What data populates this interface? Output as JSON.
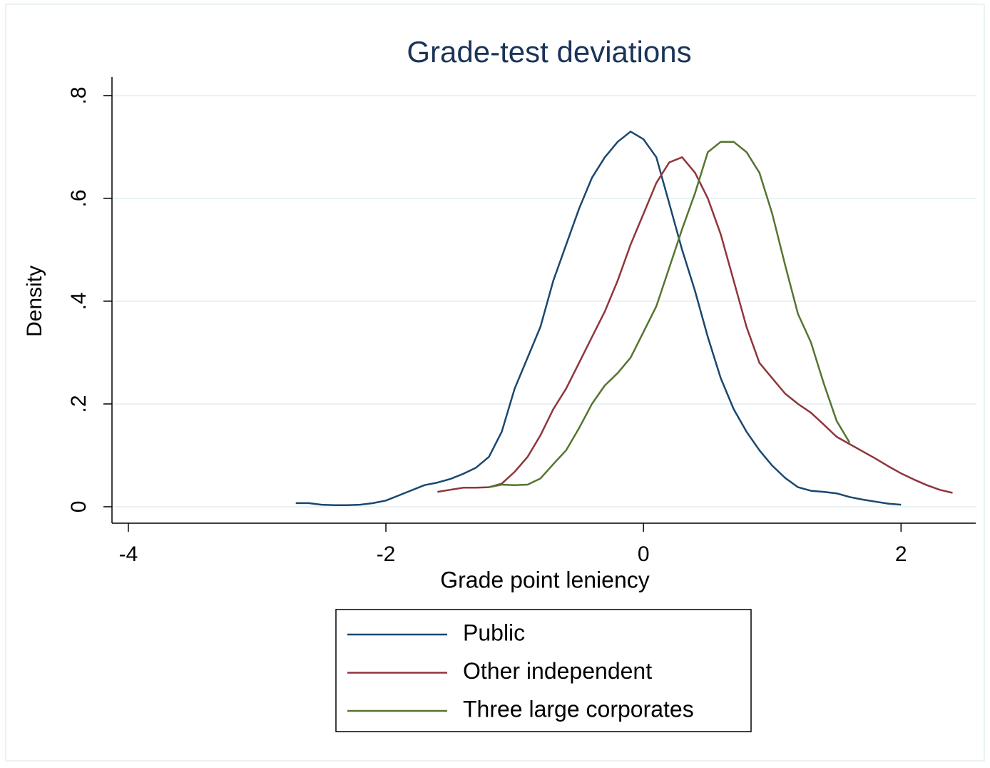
{
  "chart_data": {
    "type": "line",
    "title": "Grade-test deviations",
    "x_label": "Grade point leniency",
    "y_label": "Density",
    "xlim": [
      -4.127,
      2.58
    ],
    "ylim": [
      -0.032,
      0.836
    ],
    "xticks": [
      -4,
      -2,
      0,
      2
    ],
    "yticks": [
      {
        "value": 0,
        "label": "0"
      },
      {
        "value": 0.2,
        "label": ".2"
      },
      {
        "value": 0.4,
        "label": ".4"
      },
      {
        "value": 0.6,
        "label": ".6"
      },
      {
        "value": 0.8,
        "label": ".8"
      }
    ],
    "grid": true,
    "legend": "bottom",
    "x": [
      -2.7,
      -2.6,
      -2.5,
      -2.4,
      -2.3,
      -2.2,
      -2.1,
      -2.0,
      -1.9,
      -1.8,
      -1.7,
      -1.6,
      -1.5,
      -1.4,
      -1.3,
      -1.2,
      -1.1,
      -1.0,
      -0.9,
      -0.8,
      -0.7,
      -0.6,
      -0.5,
      -0.4,
      -0.3,
      -0.2,
      -0.1,
      0,
      0.1,
      0.2,
      0.3,
      0.4,
      0.5,
      0.6,
      0.7,
      0.8,
      0.9,
      1.0,
      1.1,
      1.2,
      1.3,
      1.4,
      1.5,
      1.6,
      1.7,
      1.8,
      1.9,
      2.0,
      2.1,
      2.2,
      2.3,
      2.4
    ],
    "series": [
      {
        "name": "Public",
        "color": "#1a476f",
        "values": [
          0.007,
          0.007,
          0.004,
          0.003,
          0.003,
          0.004,
          0.007,
          0.012,
          0.022,
          0.032,
          0.042,
          0.047,
          0.054,
          0.064,
          0.076,
          0.097,
          0.146,
          0.23,
          0.29,
          0.35,
          0.44,
          0.51,
          0.58,
          0.64,
          0.68,
          0.71,
          0.73,
          0.715,
          0.68,
          0.59,
          0.5,
          0.42,
          0.33,
          0.25,
          0.19,
          0.146,
          0.11,
          0.08,
          0.056,
          0.038,
          0.031,
          0.029,
          0.026,
          0.019,
          0.014,
          0.01,
          0.006,
          0.004,
          null,
          null,
          null,
          null
        ]
      },
      {
        "name": "Other independent",
        "color": "#90353b",
        "values": [
          null,
          null,
          null,
          null,
          null,
          null,
          null,
          null,
          null,
          null,
          null,
          0.029,
          0.033,
          0.037,
          0.037,
          0.038,
          0.045,
          0.068,
          0.097,
          0.139,
          0.19,
          0.23,
          0.28,
          0.33,
          0.38,
          0.44,
          0.51,
          0.57,
          0.63,
          0.67,
          0.68,
          0.65,
          0.6,
          0.53,
          0.44,
          0.35,
          0.28,
          0.25,
          0.22,
          0.2,
          0.183,
          0.16,
          0.136,
          0.122,
          0.108,
          0.094,
          0.079,
          0.065,
          0.053,
          0.042,
          0.033,
          0.027
        ]
      },
      {
        "name": "Three large corporates",
        "color": "#55752f",
        "values": [
          null,
          null,
          null,
          null,
          null,
          null,
          null,
          null,
          null,
          null,
          null,
          null,
          null,
          null,
          null,
          0.038,
          0.043,
          0.042,
          0.043,
          0.055,
          0.083,
          0.11,
          0.153,
          0.2,
          0.236,
          0.26,
          0.29,
          0.34,
          0.39,
          0.465,
          0.54,
          0.61,
          0.69,
          0.71,
          0.71,
          0.69,
          0.65,
          0.57,
          0.47,
          0.375,
          0.32,
          0.24,
          0.167,
          0.125,
          null,
          null,
          null,
          null,
          null,
          null,
          null,
          null
        ]
      }
    ]
  }
}
